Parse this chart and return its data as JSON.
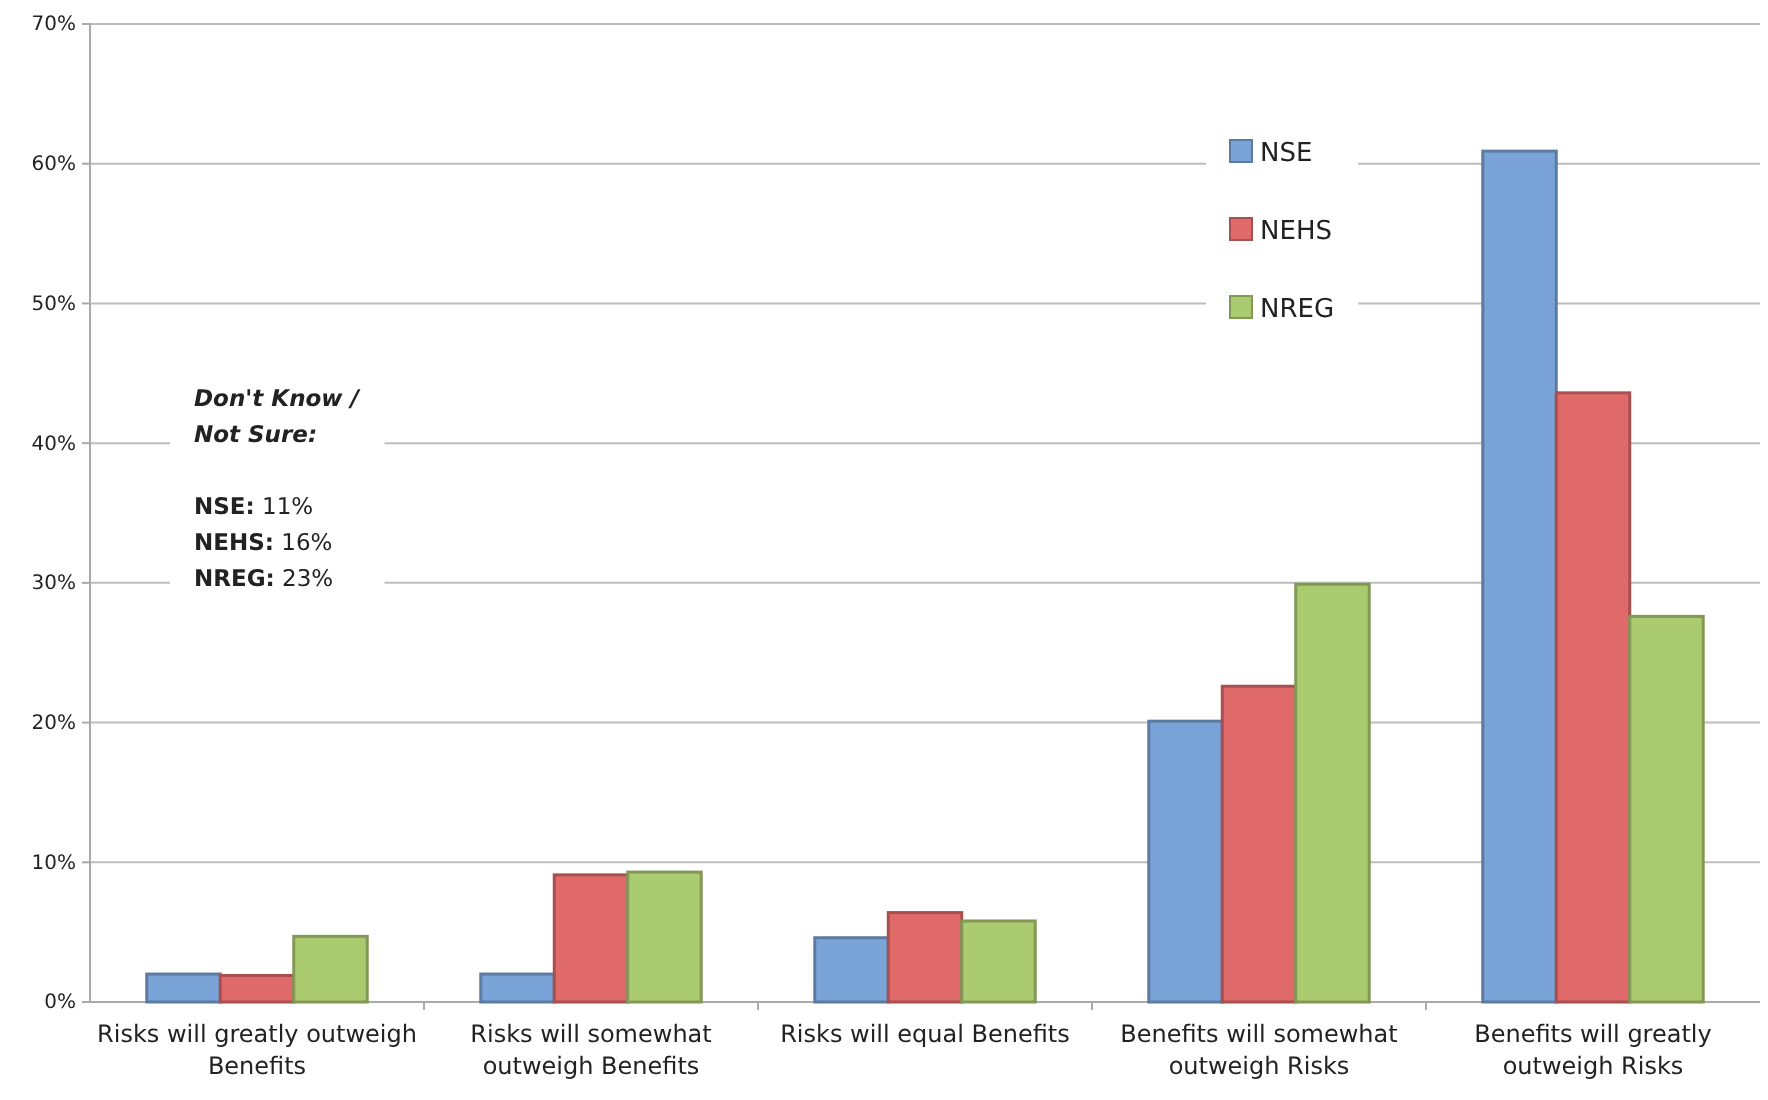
{
  "chart_data": {
    "type": "bar",
    "categories": [
      "Risks will greatly outweigh Benefits",
      "Risks will somewhat outweigh Benefits",
      "Risks will equal Benefits",
      "Benefits will somewhat outweigh Risks",
      "Benefits will greatly outweigh Risks"
    ],
    "series": [
      {
        "name": "NSE",
        "color": "#7aa3d8",
        "values": [
          2.0,
          2.0,
          4.6,
          20.1,
          60.9
        ]
      },
      {
        "name": "NEHS",
        "color": "#e06a6a",
        "values": [
          1.9,
          9.1,
          6.4,
          22.6,
          43.6
        ]
      },
      {
        "name": "NREG",
        "color": "#abcb70",
        "values": [
          4.7,
          9.3,
          5.8,
          29.9,
          27.6
        ]
      }
    ],
    "ylim": [
      0,
      70
    ],
    "yticks": [
      {
        "value": 0,
        "label": "0%"
      },
      {
        "value": 10,
        "label": "10%"
      },
      {
        "value": 20,
        "label": "20%"
      },
      {
        "value": 30,
        "label": "30%"
      },
      {
        "value": 40,
        "label": "40%"
      },
      {
        "value": 50,
        "label": "50%"
      },
      {
        "value": 60,
        "label": "60%"
      },
      {
        "value": 70,
        "label": "70%"
      }
    ],
    "grid": "y",
    "legend": "top right",
    "annotations": [
      "Don't Know / Not Sure:",
      "NSE: 11%",
      "NEHS: 16%",
      "NREG: 23%"
    ]
  }
}
